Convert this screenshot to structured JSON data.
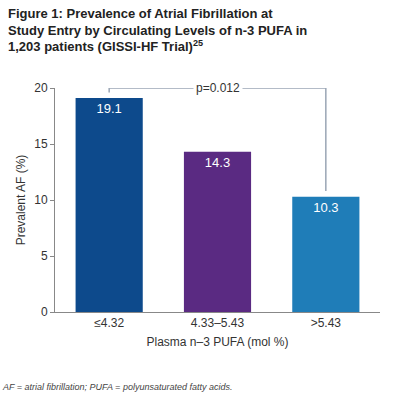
{
  "chart_data": {
    "type": "bar",
    "title": "Figure 1: Prevalence of Atrial Fibrillation at Study Entry by Circulating Levels of n-3 PUFA in 1,203 patients (GISSI-HF Trial)",
    "title_superscript": "25",
    "x_label": "Plasma n–3 PUFA (mol %)",
    "y_label": "Prevalent AF (%)",
    "categories": [
      "≤4.32",
      "4.33–5.43",
      ">5.43"
    ],
    "values": [
      19.1,
      14.3,
      10.3
    ],
    "colors": [
      "#0d4a8c",
      "#5a2a82",
      "#1f7db8"
    ],
    "ylim": [
      0,
      20
    ],
    "yticks": [
      0,
      5,
      10,
      15,
      20
    ],
    "grid": false,
    "data_labels": true,
    "annotations": [
      {
        "text": "p=0.012",
        "from": "≤4.32",
        "to": ">5.43"
      }
    ],
    "footnote": "AF = atrial fibrillation; PUFA = polyunsaturated fatty acids."
  }
}
